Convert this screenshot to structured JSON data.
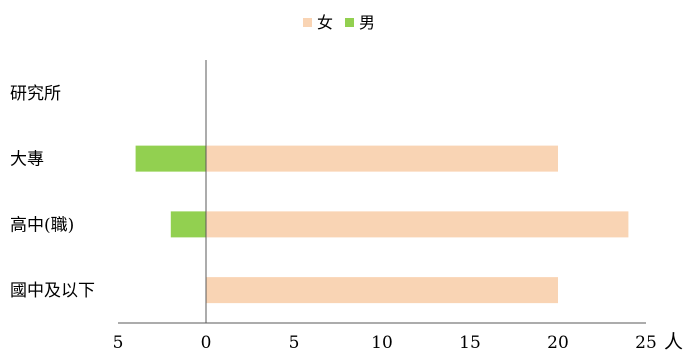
{
  "chart_data": {
    "type": "bar",
    "orientation": "horizontal",
    "stacked": true,
    "categories": [
      "國中及以下",
      "高中(職)",
      "大專",
      "研究所"
    ],
    "series": [
      {
        "name": "女",
        "color": "#F9D4B4",
        "values": [
          20,
          24,
          20,
          0
        ]
      },
      {
        "name": "男",
        "color": "#92D050",
        "values": [
          0,
          -2,
          -4,
          0
        ]
      }
    ],
    "x_ticks": [
      -5,
      0,
      5,
      10,
      15,
      20,
      25
    ],
    "x_tick_labels": [
      "5",
      "0",
      "5",
      "10",
      "15",
      "20",
      "25"
    ],
    "xlim": [
      -5,
      25
    ],
    "xlabel": "人",
    "legend_position": "top",
    "grid": false
  }
}
